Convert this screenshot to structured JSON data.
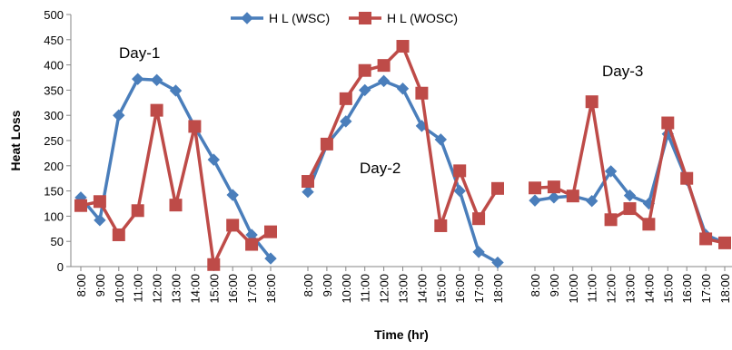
{
  "chart_data": {
    "type": "line",
    "title": "",
    "xlabel": "Time (hr)",
    "ylabel": "Heat Loss",
    "ylim": [
      0,
      500
    ],
    "yticks": [
      "0",
      "50",
      "100",
      "150",
      "200",
      "250",
      "300",
      "350",
      "400",
      "450",
      "500"
    ],
    "grid": false,
    "legend_position": "top-center",
    "groups": [
      {
        "label": "Day-1",
        "categories": [
          "8:00",
          "9:00",
          "10:00",
          "11:00",
          "12:00",
          "13:00",
          "14:00",
          "15:00",
          "16:00",
          "17:00",
          "18:00"
        ]
      },
      {
        "label": "Day-2",
        "categories": [
          "8:00",
          "9:00",
          "10:00",
          "11:00",
          "12:00",
          "13:00",
          "14:00",
          "15:00",
          "16:00",
          "17:00",
          "18:00"
        ]
      },
      {
        "label": "Day-3",
        "categories": [
          "8:00",
          "9:00",
          "10:00",
          "11:00",
          "12:00",
          "13:00",
          "14:00",
          "15:00",
          "16:00",
          "17:00",
          "18:00"
        ]
      }
    ],
    "series": [
      {
        "name": "H L (WSC)",
        "color": "#4a7ebb",
        "marker": "diamond",
        "values": [
          [
            137,
            92,
            300,
            372,
            370,
            349,
            277,
            212,
            142,
            63,
            16
          ],
          [
            148,
            242,
            288,
            350,
            368,
            353,
            279,
            252,
            150,
            29,
            8
          ],
          [
            131,
            137,
            140,
            130,
            189,
            141,
            125,
            263,
            172,
            63,
            47
          ]
        ]
      },
      {
        "name": "H L (WOSC)",
        "color": "#be4b48",
        "marker": "square",
        "values": [
          [
            121,
            129,
            63,
            111,
            310,
            122,
            278,
            4,
            82,
            44,
            69
          ],
          [
            169,
            243,
            333,
            389,
            399,
            437,
            344,
            81,
            190,
            95,
            155
          ],
          [
            156,
            158,
            140,
            327,
            93,
            115,
            84,
            285,
            175,
            55,
            47
          ]
        ]
      }
    ]
  }
}
